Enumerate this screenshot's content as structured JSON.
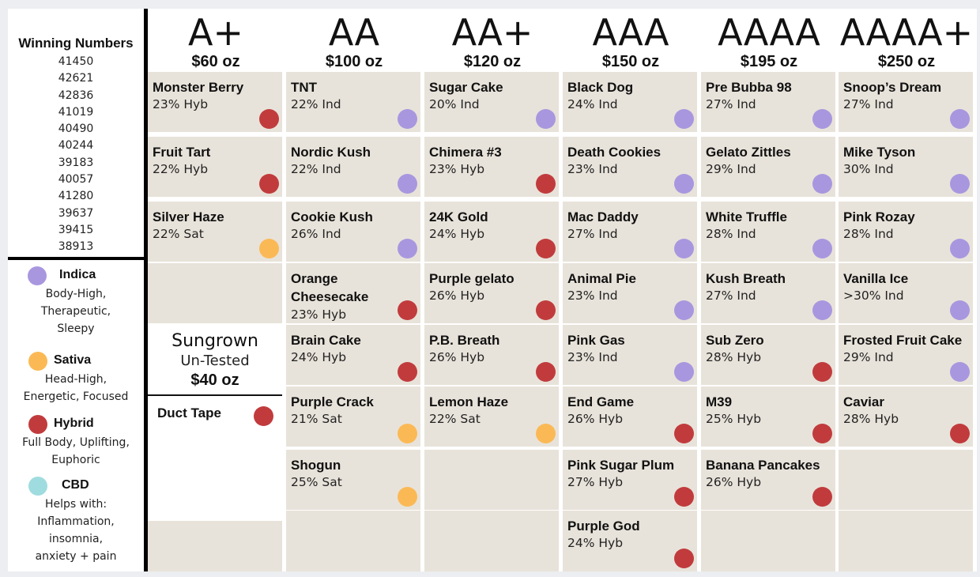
{
  "colors": {
    "indica": "#a897df",
    "sativa": "#fbb956",
    "hybrid": "#c13b3d",
    "cbd": "#9fdcdf",
    "cell_bg": "#e8e3da"
  },
  "winning_numbers": {
    "title": "Winning Numbers",
    "numbers": [
      "41450",
      "42621",
      "42836",
      "41019",
      "40490",
      "40244",
      "39183",
      "40057",
      "41280",
      "39637",
      "39415",
      "38913"
    ]
  },
  "legend": [
    {
      "type": "indica",
      "name": "Indica",
      "desc": [
        "Body-High,",
        "Therapeutic,",
        "Sleepy"
      ]
    },
    {
      "type": "sativa",
      "name": "Sativa",
      "desc": [
        "Head-High,",
        "Energetic, Focused"
      ]
    },
    {
      "type": "hybrid",
      "name": "Hybrid",
      "desc": [
        "Full Body, Uplifting,",
        "Euphoric"
      ]
    },
    {
      "type": "cbd",
      "name": "CBD",
      "desc": [
        "Helps with:",
        "Inflammation,",
        "insomnia,",
        "anxiety + pain"
      ]
    }
  ],
  "grades": [
    {
      "name": "A+",
      "price": "$60 oz",
      "strains": [
        {
          "name": "Monster Berry",
          "info": "23% Hyb",
          "type": "hybrid"
        },
        {
          "name": "Fruit Tart",
          "info": "22% Hyb",
          "type": "hybrid"
        },
        {
          "name": "Silver Haze",
          "info": "22% Sat",
          "type": "sativa"
        },
        null
      ]
    },
    {
      "name": "AA",
      "price": "$100 oz",
      "strains": [
        {
          "name": "TNT",
          "info": "22% Ind",
          "type": "indica"
        },
        {
          "name": "Nordic Kush",
          "info": "22% Ind",
          "type": "indica"
        },
        {
          "name": "Cookie Kush",
          "info": "26% Ind",
          "type": "indica"
        },
        {
          "name": "Orange Cheesecake",
          "info": "23% Hyb",
          "type": "hybrid"
        },
        {
          "name": "Brain Cake",
          "info": "24% Hyb",
          "type": "hybrid"
        },
        {
          "name": "Purple Crack",
          "info": "21% Sat",
          "type": "sativa"
        },
        {
          "name": "Shogun",
          "info": "25% Sat",
          "type": "sativa"
        },
        null
      ]
    },
    {
      "name": "AA+",
      "price": "$120 oz",
      "strains": [
        {
          "name": "Sugar Cake",
          "info": "20% Ind",
          "type": "indica"
        },
        {
          "name": "Chimera #3",
          "info": "23% Hyb",
          "type": "hybrid"
        },
        {
          "name": "24K Gold",
          "info": "24% Hyb",
          "type": "hybrid"
        },
        {
          "name": "Purple gelato",
          "info": "26% Hyb",
          "type": "hybrid"
        },
        {
          "name": "P.B. Breath",
          "info": "26% Hyb",
          "type": "hybrid"
        },
        {
          "name": "Lemon Haze",
          "info": "22% Sat",
          "type": "sativa"
        },
        null,
        null
      ]
    },
    {
      "name": "AAA",
      "price": "$150 oz",
      "strains": [
        {
          "name": "Black Dog",
          "info": "24% Ind",
          "type": "indica"
        },
        {
          "name": "Death Cookies",
          "info": "23% Ind",
          "type": "indica"
        },
        {
          "name": "Mac Daddy",
          "info": "27% Ind",
          "type": "indica"
        },
        {
          "name": "Animal Pie",
          "info": "23% Ind",
          "type": "indica"
        },
        {
          "name": "Pink Gas",
          "info": "23% Ind",
          "type": "indica"
        },
        {
          "name": "End Game",
          "info": "26% Hyb",
          "type": "hybrid"
        },
        {
          "name": "Pink Sugar Plum",
          "info": "27% Hyb",
          "type": "hybrid"
        },
        {
          "name": "Purple God",
          "info": "24% Hyb",
          "type": "hybrid"
        }
      ]
    },
    {
      "name": "AAAA",
      "price": "$195 oz",
      "strains": [
        {
          "name": "Pre Bubba 98",
          "info": "27% Ind",
          "type": "indica"
        },
        {
          "name": "Gelato Zittles",
          "info": "29% Ind",
          "type": "indica"
        },
        {
          "name": "White Truffle",
          "info": "28% Ind",
          "type": "indica"
        },
        {
          "name": "Kush Breath",
          "info": "27% Ind",
          "type": "indica"
        },
        {
          "name": "Sub Zero",
          "info": "28% Hyb",
          "type": "hybrid"
        },
        {
          "name": "M39",
          "info": "25% Hyb",
          "type": "hybrid"
        },
        {
          "name": "Banana Pancakes",
          "info": "26% Hyb",
          "type": "hybrid"
        },
        null
      ]
    },
    {
      "name": "AAAA+",
      "price": "$250 oz",
      "strains": [
        {
          "name": "Snoop’s Dream",
          "info": "27% Ind",
          "type": "indica"
        },
        {
          "name": "Mike Tyson",
          "info": "30% Ind",
          "type": "indica"
        },
        {
          "name": "Pink Rozay",
          "info": "28% Ind",
          "type": "indica"
        },
        {
          "name": "Vanilla Ice",
          "info": ">30% Ind",
          "type": "indica"
        },
        {
          "name": "Frosted Fruit Cake",
          "info": "29% Ind",
          "type": "indica"
        },
        {
          "name": "Caviar",
          "info": "28% Hyb",
          "type": "hybrid"
        },
        null,
        null
      ]
    }
  ],
  "sungrown": {
    "title": "Sungrown",
    "subtitle": "Un-Tested",
    "price": "$40 oz",
    "strain": {
      "name": "Duct Tape",
      "type": "hybrid"
    }
  }
}
